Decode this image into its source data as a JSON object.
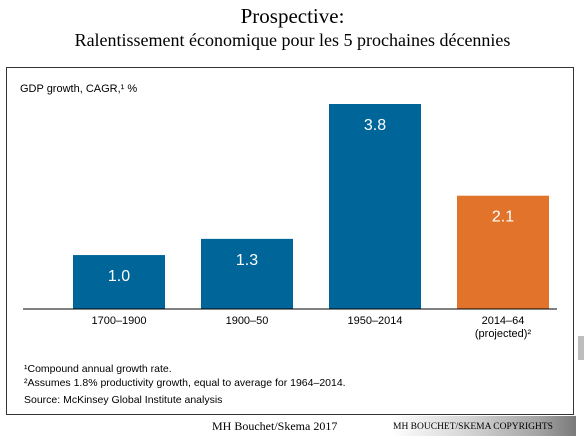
{
  "slide": {
    "title_line1": "Prospective:",
    "title_line2": "Ralentissement économique pour les 5 prochaines décennies"
  },
  "chart_data": {
    "type": "bar",
    "title": "GDP growth, CAGR,¹ %",
    "categories": [
      "1700–1900",
      "1900–50",
      "1950–2014",
      "2014–64"
    ],
    "category_sublabels": [
      "",
      "",
      "",
      "(projected)²"
    ],
    "values": [
      1.0,
      1.3,
      3.8,
      2.1
    ],
    "value_labels": [
      "1.0",
      "1.3",
      "3.8",
      "2.1"
    ],
    "colors": [
      "#006699",
      "#006699",
      "#006699",
      "#e1732b"
    ],
    "ylim": [
      0,
      4
    ],
    "grid": false
  },
  "footnotes": {
    "note1": "¹Compound annual growth rate.",
    "note2": "²Assumes 1.8% productivity growth, equal to average for 1964–2014.",
    "source": "Source: McKinsey Global Institute analysis"
  },
  "footer": {
    "credit": "MH Bouchet/Skema 2017",
    "copyright": "MH BOUCHET/SKEMA COPYRIGHTS"
  }
}
